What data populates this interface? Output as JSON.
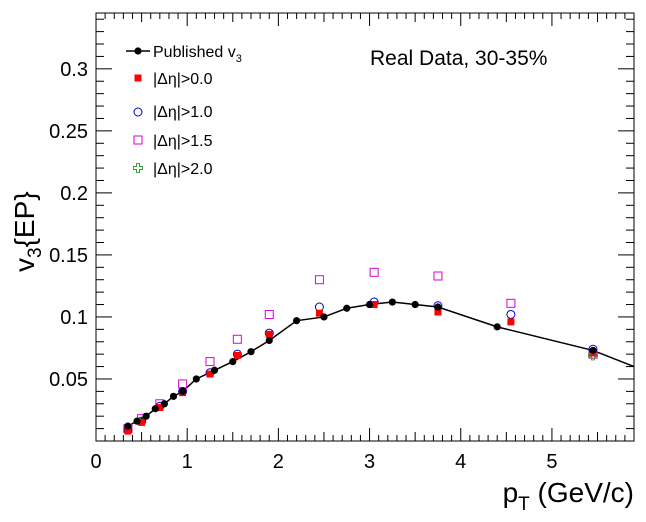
{
  "chart_data": {
    "type": "scatter",
    "title": "",
    "annotation": "Real Data, 30-35%",
    "xlabel": {
      "main": "p",
      "sub": "T",
      "rest": " (GeV/c)"
    },
    "ylabel": {
      "main": "v",
      "sub": "3",
      "rest": "{EP}"
    },
    "xlim": [
      0,
      5.9
    ],
    "ylim": [
      0,
      0.345
    ],
    "x_ticks": [
      0,
      1,
      2,
      3,
      4,
      5
    ],
    "x_tick_labels": [
      "0",
      "1",
      "2",
      "3",
      "4",
      "5"
    ],
    "y_ticks": [
      0.05,
      0.1,
      0.15,
      0.2,
      0.25,
      0.3
    ],
    "y_tick_labels": [
      "0.05",
      "0.1",
      "0.15",
      "0.2",
      "0.25",
      "0.3"
    ],
    "grid": false,
    "legend_position": "top-left",
    "series": [
      {
        "name": "Published v",
        "name_sub": "3",
        "marker": "filled-circle",
        "color": "#000000",
        "line": true,
        "x": [
          0.35,
          0.45,
          0.55,
          0.65,
          0.75,
          0.85,
          0.95,
          1.1,
          1.3,
          1.5,
          1.7,
          1.9,
          2.2,
          2.5,
          2.75,
          3.0,
          3.25,
          3.5,
          3.75,
          4.4,
          5.45,
          5.9
        ],
        "y": [
          0.012,
          0.016,
          0.02,
          0.026,
          0.03,
          0.036,
          0.04,
          0.05,
          0.057,
          0.064,
          0.072,
          0.081,
          0.097,
          0.1,
          0.107,
          0.11,
          0.112,
          0.11,
          0.108,
          0.092,
          0.073,
          0.06
        ]
      },
      {
        "name": "|Δη|>0.0",
        "marker": "filled-square",
        "color": "#ff0000",
        "x": [
          0.35,
          0.5,
          0.7,
          0.95,
          1.25,
          1.55,
          1.9,
          2.45,
          3.05,
          3.75,
          4.55,
          5.45
        ],
        "y": [
          0.008,
          0.015,
          0.027,
          0.039,
          0.054,
          0.069,
          0.086,
          0.103,
          0.11,
          0.104,
          0.096,
          0.071
        ]
      },
      {
        "name": "|Δη|>1.0",
        "marker": "open-circle",
        "color": "#0000cc",
        "x": [
          0.35,
          0.5,
          0.7,
          0.95,
          1.25,
          1.55,
          1.9,
          2.45,
          3.05,
          3.75,
          4.55,
          5.45
        ],
        "y": [
          0.009,
          0.016,
          0.028,
          0.04,
          0.055,
          0.07,
          0.087,
          0.108,
          0.112,
          0.109,
          0.102,
          0.074
        ]
      },
      {
        "name": "|Δη|>1.5",
        "marker": "open-square",
        "color": "#dd00dd",
        "x": [
          0.35,
          0.5,
          0.7,
          0.95,
          1.25,
          1.55,
          1.9,
          2.45,
          3.05,
          3.75,
          4.55,
          5.45
        ],
        "y": [
          0.01,
          0.018,
          0.03,
          0.046,
          0.064,
          0.082,
          0.102,
          0.13,
          0.136,
          0.133,
          0.111,
          0.07
        ]
      },
      {
        "name": "|Δη|>2.0",
        "marker": "open-cross",
        "color": "#33aa33",
        "x": [
          5.45
        ],
        "y": [
          0.069
        ]
      }
    ]
  }
}
